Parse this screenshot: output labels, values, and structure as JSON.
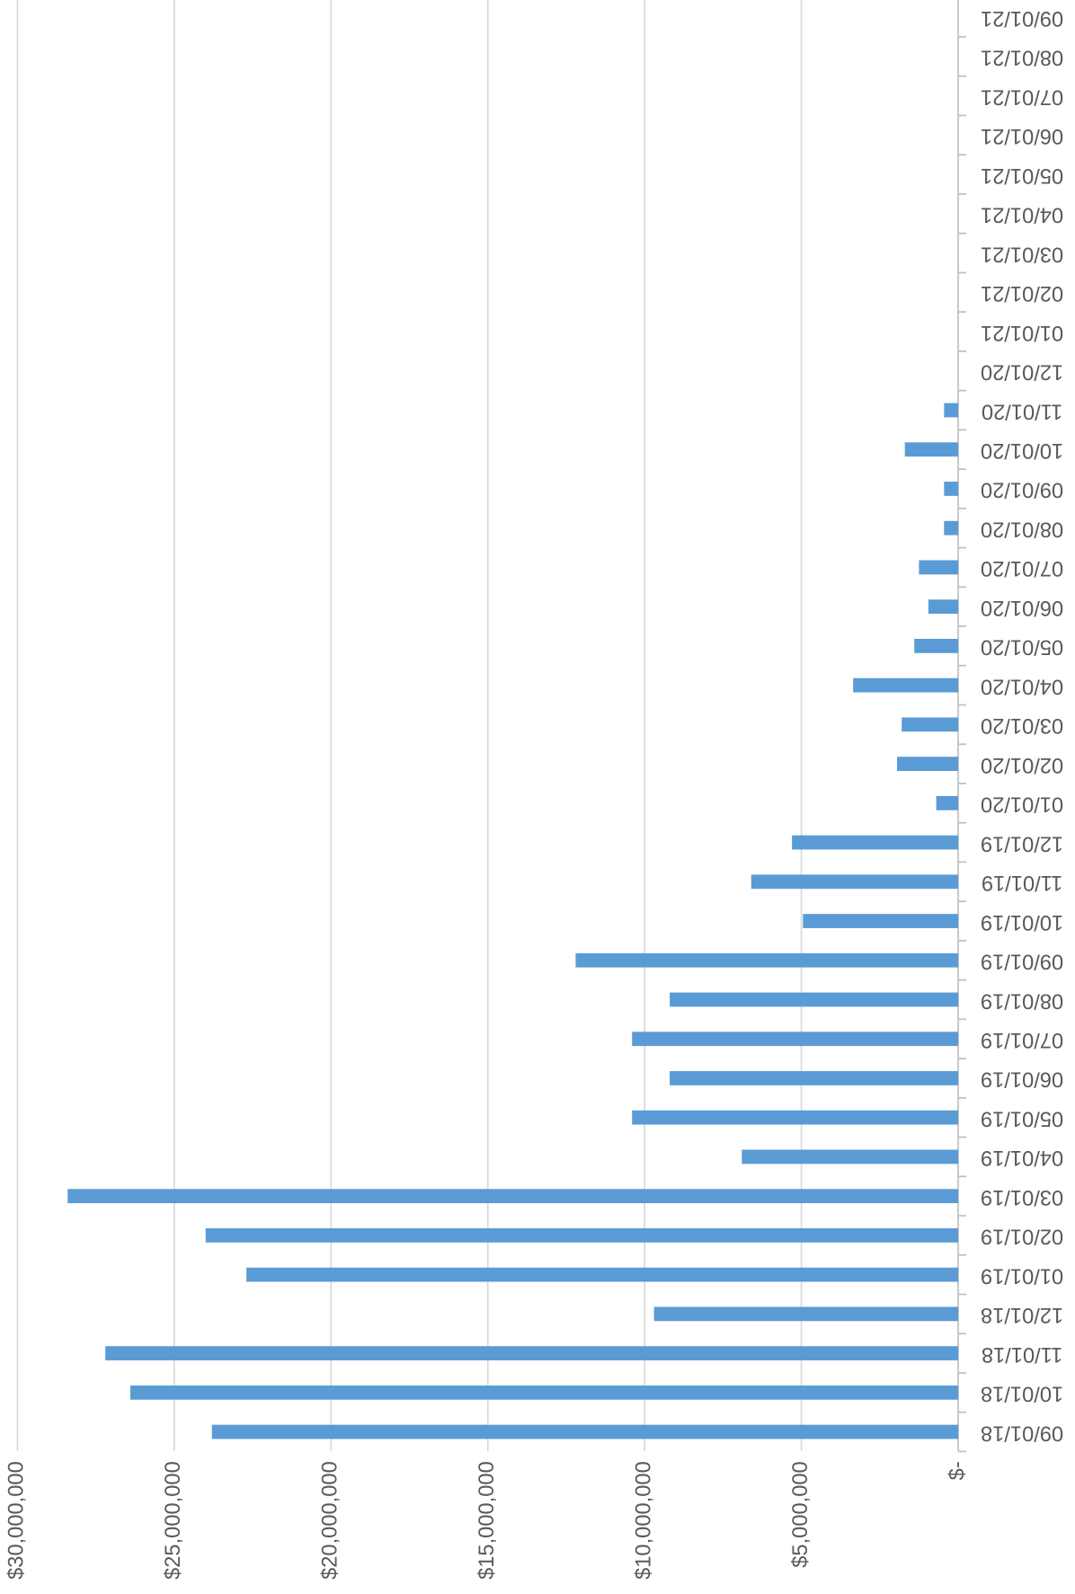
{
  "chart_data": {
    "type": "bar",
    "categories": [
      "09/01/18",
      "10/01/18",
      "11/01/18",
      "12/01/18",
      "01/01/19",
      "02/01/19",
      "03/01/19",
      "04/01/19",
      "05/01/19",
      "06/01/19",
      "07/01/19",
      "08/01/19",
      "09/01/19",
      "10/01/19",
      "11/01/19",
      "12/01/19",
      "01/01/20",
      "02/01/20",
      "03/01/20",
      "04/01/20",
      "05/01/20",
      "06/01/20",
      "07/01/20",
      "08/01/20",
      "09/01/20",
      "10/01/20",
      "11/01/20",
      "12/01/20",
      "01/01/21",
      "02/01/21",
      "03/01/21",
      "04/01/21",
      "05/01/21",
      "06/01/21",
      "07/01/21",
      "08/01/21",
      "09/01/21"
    ],
    "values": [
      23800000,
      26400000,
      27200000,
      9700000,
      22700000,
      24000000,
      28400000,
      6900000,
      10400000,
      9200000,
      10400000,
      9200000,
      12200000,
      4950000,
      6600000,
      5300000,
      700000,
      1950000,
      1800000,
      3350000,
      1400000,
      950000,
      1250000,
      450000,
      450000,
      1700000,
      450000,
      null,
      null,
      null,
      null,
      null,
      null,
      null,
      null,
      null,
      null
    ],
    "color": "#5b9bd5",
    "ylim": [
      0,
      30000000
    ],
    "yticks": [
      {
        "value": 0,
        "label": "$-"
      },
      {
        "value": 5000000,
        "label": "$5,000,000"
      },
      {
        "value": 10000000,
        "label": "$10,000,000"
      },
      {
        "value": 15000000,
        "label": "$15,000,000"
      },
      {
        "value": 20000000,
        "label": "$20,000,000"
      },
      {
        "value": 25000000,
        "label": "$25,000,000"
      },
      {
        "value": 30000000,
        "label": "$30,000,000"
      }
    ],
    "grid": true
  }
}
